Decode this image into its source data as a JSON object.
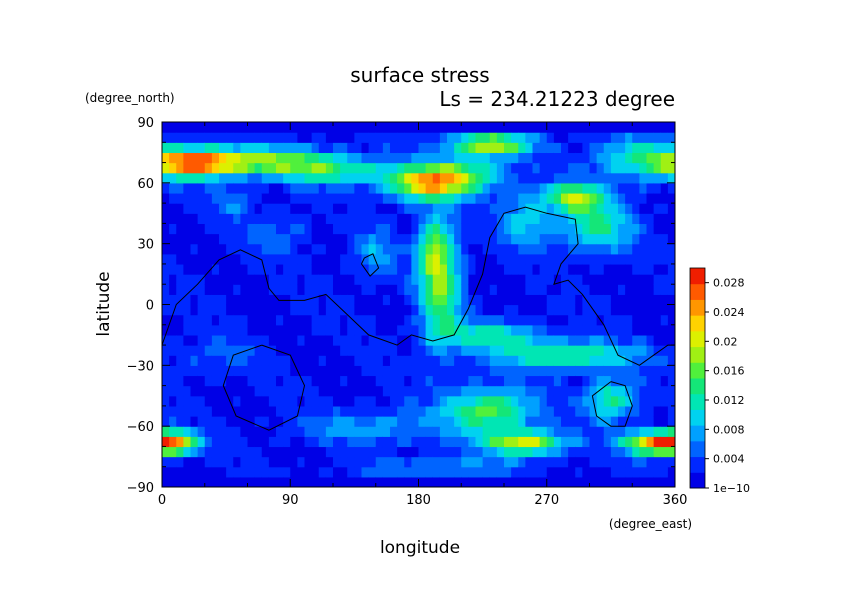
{
  "chart_data": {
    "type": "heatmap",
    "title": "surface stress",
    "subtitle": "Ls = 234.21223 degree",
    "xlabel": "longitude",
    "ylabel": "latitude",
    "xunits": "(degree_east)",
    "yunits": "(degree_north)",
    "xlim": [
      0,
      360
    ],
    "ylim": [
      -90,
      90
    ],
    "xticks": [
      "0",
      "90",
      "180",
      "270",
      "360"
    ],
    "yticks": [
      "90",
      "60",
      "30",
      "0",
      "−30",
      "−60",
      "−90"
    ],
    "xtick_values": [
      0,
      90,
      180,
      270,
      360
    ],
    "ytick_values": [
      90,
      60,
      30,
      0,
      -30,
      -60,
      -90
    ],
    "colorbar": {
      "labels": [
        "1e−10",
        "0.004",
        "0.008",
        "0.012",
        "0.016",
        "0.02",
        "0.024",
        "0.028"
      ],
      "label_values": [
        0,
        0.004,
        0.008,
        0.012,
        0.016,
        0.02,
        0.024,
        0.028
      ],
      "vmin": 0,
      "vmax": 0.03,
      "colors": [
        "#0000e6",
        "#0028ff",
        "#0064ff",
        "#00a0ff",
        "#00d2f0",
        "#00e6b4",
        "#14e678",
        "#50f03c",
        "#a0f014",
        "#dcf000",
        "#ffd200",
        "#ff9600",
        "#ff5a00",
        "#f01e00"
      ]
    },
    "grid": false,
    "base_level": 0.002,
    "features": [
      {
        "lon": 20,
        "lat": 70,
        "slon": 22,
        "slat": 5,
        "amp": 0.022
      },
      {
        "lon": 70,
        "lat": 71,
        "slon": 35,
        "slat": 5,
        "amp": 0.014
      },
      {
        "lon": 125,
        "lat": 66,
        "slon": 30,
        "slat": 5,
        "amp": 0.01
      },
      {
        "lon": 185,
        "lat": 60,
        "slon": 18,
        "slat": 6,
        "amp": 0.02
      },
      {
        "lon": 215,
        "lat": 64,
        "slon": 18,
        "slat": 6,
        "amp": 0.012
      },
      {
        "lon": 230,
        "lat": 79,
        "slon": 20,
        "slat": 4,
        "amp": 0.018
      },
      {
        "lon": 290,
        "lat": 53,
        "slon": 15,
        "slat": 5,
        "amp": 0.016
      },
      {
        "lon": 330,
        "lat": 72,
        "slon": 20,
        "slat": 8,
        "amp": 0.009
      },
      {
        "lon": 305,
        "lat": 38,
        "slon": 18,
        "slat": 8,
        "amp": 0.011
      },
      {
        "lon": 255,
        "lat": 42,
        "slon": 12,
        "slat": 10,
        "amp": 0.008
      },
      {
        "lon": 195,
        "lat": 10,
        "slon": 10,
        "slat": 20,
        "amp": 0.015
      },
      {
        "lon": 190,
        "lat": 30,
        "slon": 8,
        "slat": 10,
        "amp": 0.008
      },
      {
        "lon": 150,
        "lat": 25,
        "slon": 10,
        "slat": 8,
        "amp": 0.006
      },
      {
        "lon": 230,
        "lat": -15,
        "slon": 25,
        "slat": 5,
        "amp": 0.01
      },
      {
        "lon": 285,
        "lat": -25,
        "slon": 35,
        "slat": 5,
        "amp": 0.012
      },
      {
        "lon": 230,
        "lat": -52,
        "slon": 22,
        "slat": 8,
        "amp": 0.014
      },
      {
        "lon": 255,
        "lat": -68,
        "slon": 20,
        "slat": 4,
        "amp": 0.018
      },
      {
        "lon": 315,
        "lat": -47,
        "slon": 12,
        "slat": 7,
        "amp": 0.012
      },
      {
        "lon": 8,
        "lat": -68,
        "slon": 12,
        "slat": 4,
        "amp": 0.02
      },
      {
        "lon": 345,
        "lat": -68,
        "slon": 15,
        "slat": 4,
        "amp": 0.022
      },
      {
        "lon": 150,
        "lat": -60,
        "slon": 35,
        "slat": 6,
        "amp": 0.006
      },
      {
        "lon": 80,
        "lat": 35,
        "slon": 15,
        "slat": 8,
        "amp": 0.004
      },
      {
        "lon": 50,
        "lat": 50,
        "slon": 10,
        "slat": 5,
        "amp": 0.004
      },
      {
        "lon": 200,
        "lat": -80,
        "slon": 40,
        "slat": 3,
        "amp": 0.006
      },
      {
        "lon": 40,
        "lat": -25,
        "slon": 20,
        "slat": 6,
        "amp": 0.003
      }
    ],
    "contours": [
      {
        "name": "dichotomy-boundary",
        "points": [
          [
            0,
            -20
          ],
          [
            10,
            0
          ],
          [
            25,
            10
          ],
          [
            40,
            22
          ],
          [
            55,
            27
          ],
          [
            70,
            22
          ],
          [
            75,
            8
          ],
          [
            82,
            2
          ],
          [
            100,
            2
          ],
          [
            115,
            5
          ],
          [
            130,
            -5
          ],
          [
            145,
            -15
          ],
          [
            165,
            -20
          ],
          [
            175,
            -15
          ],
          [
            190,
            -18
          ],
          [
            205,
            -15
          ],
          [
            215,
            -2
          ],
          [
            225,
            15
          ],
          [
            230,
            33
          ],
          [
            240,
            45
          ],
          [
            255,
            48
          ],
          [
            270,
            45
          ],
          [
            290,
            42
          ],
          [
            292,
            30
          ],
          [
            280,
            20
          ],
          [
            275,
            10
          ],
          [
            285,
            12
          ],
          [
            295,
            5
          ],
          [
            310,
            -10
          ],
          [
            320,
            -25
          ],
          [
            335,
            -30
          ],
          [
            345,
            -25
          ],
          [
            355,
            -20
          ],
          [
            360,
            -20
          ]
        ]
      },
      {
        "name": "hellas",
        "points": [
          [
            70,
            -20
          ],
          [
            90,
            -25
          ],
          [
            100,
            -40
          ],
          [
            95,
            -55
          ],
          [
            75,
            -62
          ],
          [
            52,
            -55
          ],
          [
            43,
            -40
          ],
          [
            50,
            -25
          ],
          [
            70,
            -20
          ]
        ]
      },
      {
        "name": "argyre",
        "points": [
          [
            315,
            -38
          ],
          [
            325,
            -40
          ],
          [
            330,
            -50
          ],
          [
            325,
            -60
          ],
          [
            315,
            -60
          ],
          [
            305,
            -55
          ],
          [
            302,
            -45
          ],
          [
            315,
            -38
          ]
        ]
      },
      {
        "name": "elysium",
        "points": [
          [
            142,
            23
          ],
          [
            148,
            25
          ],
          [
            152,
            18
          ],
          [
            146,
            14
          ],
          [
            140,
            20
          ],
          [
            142,
            23
          ]
        ]
      }
    ]
  }
}
